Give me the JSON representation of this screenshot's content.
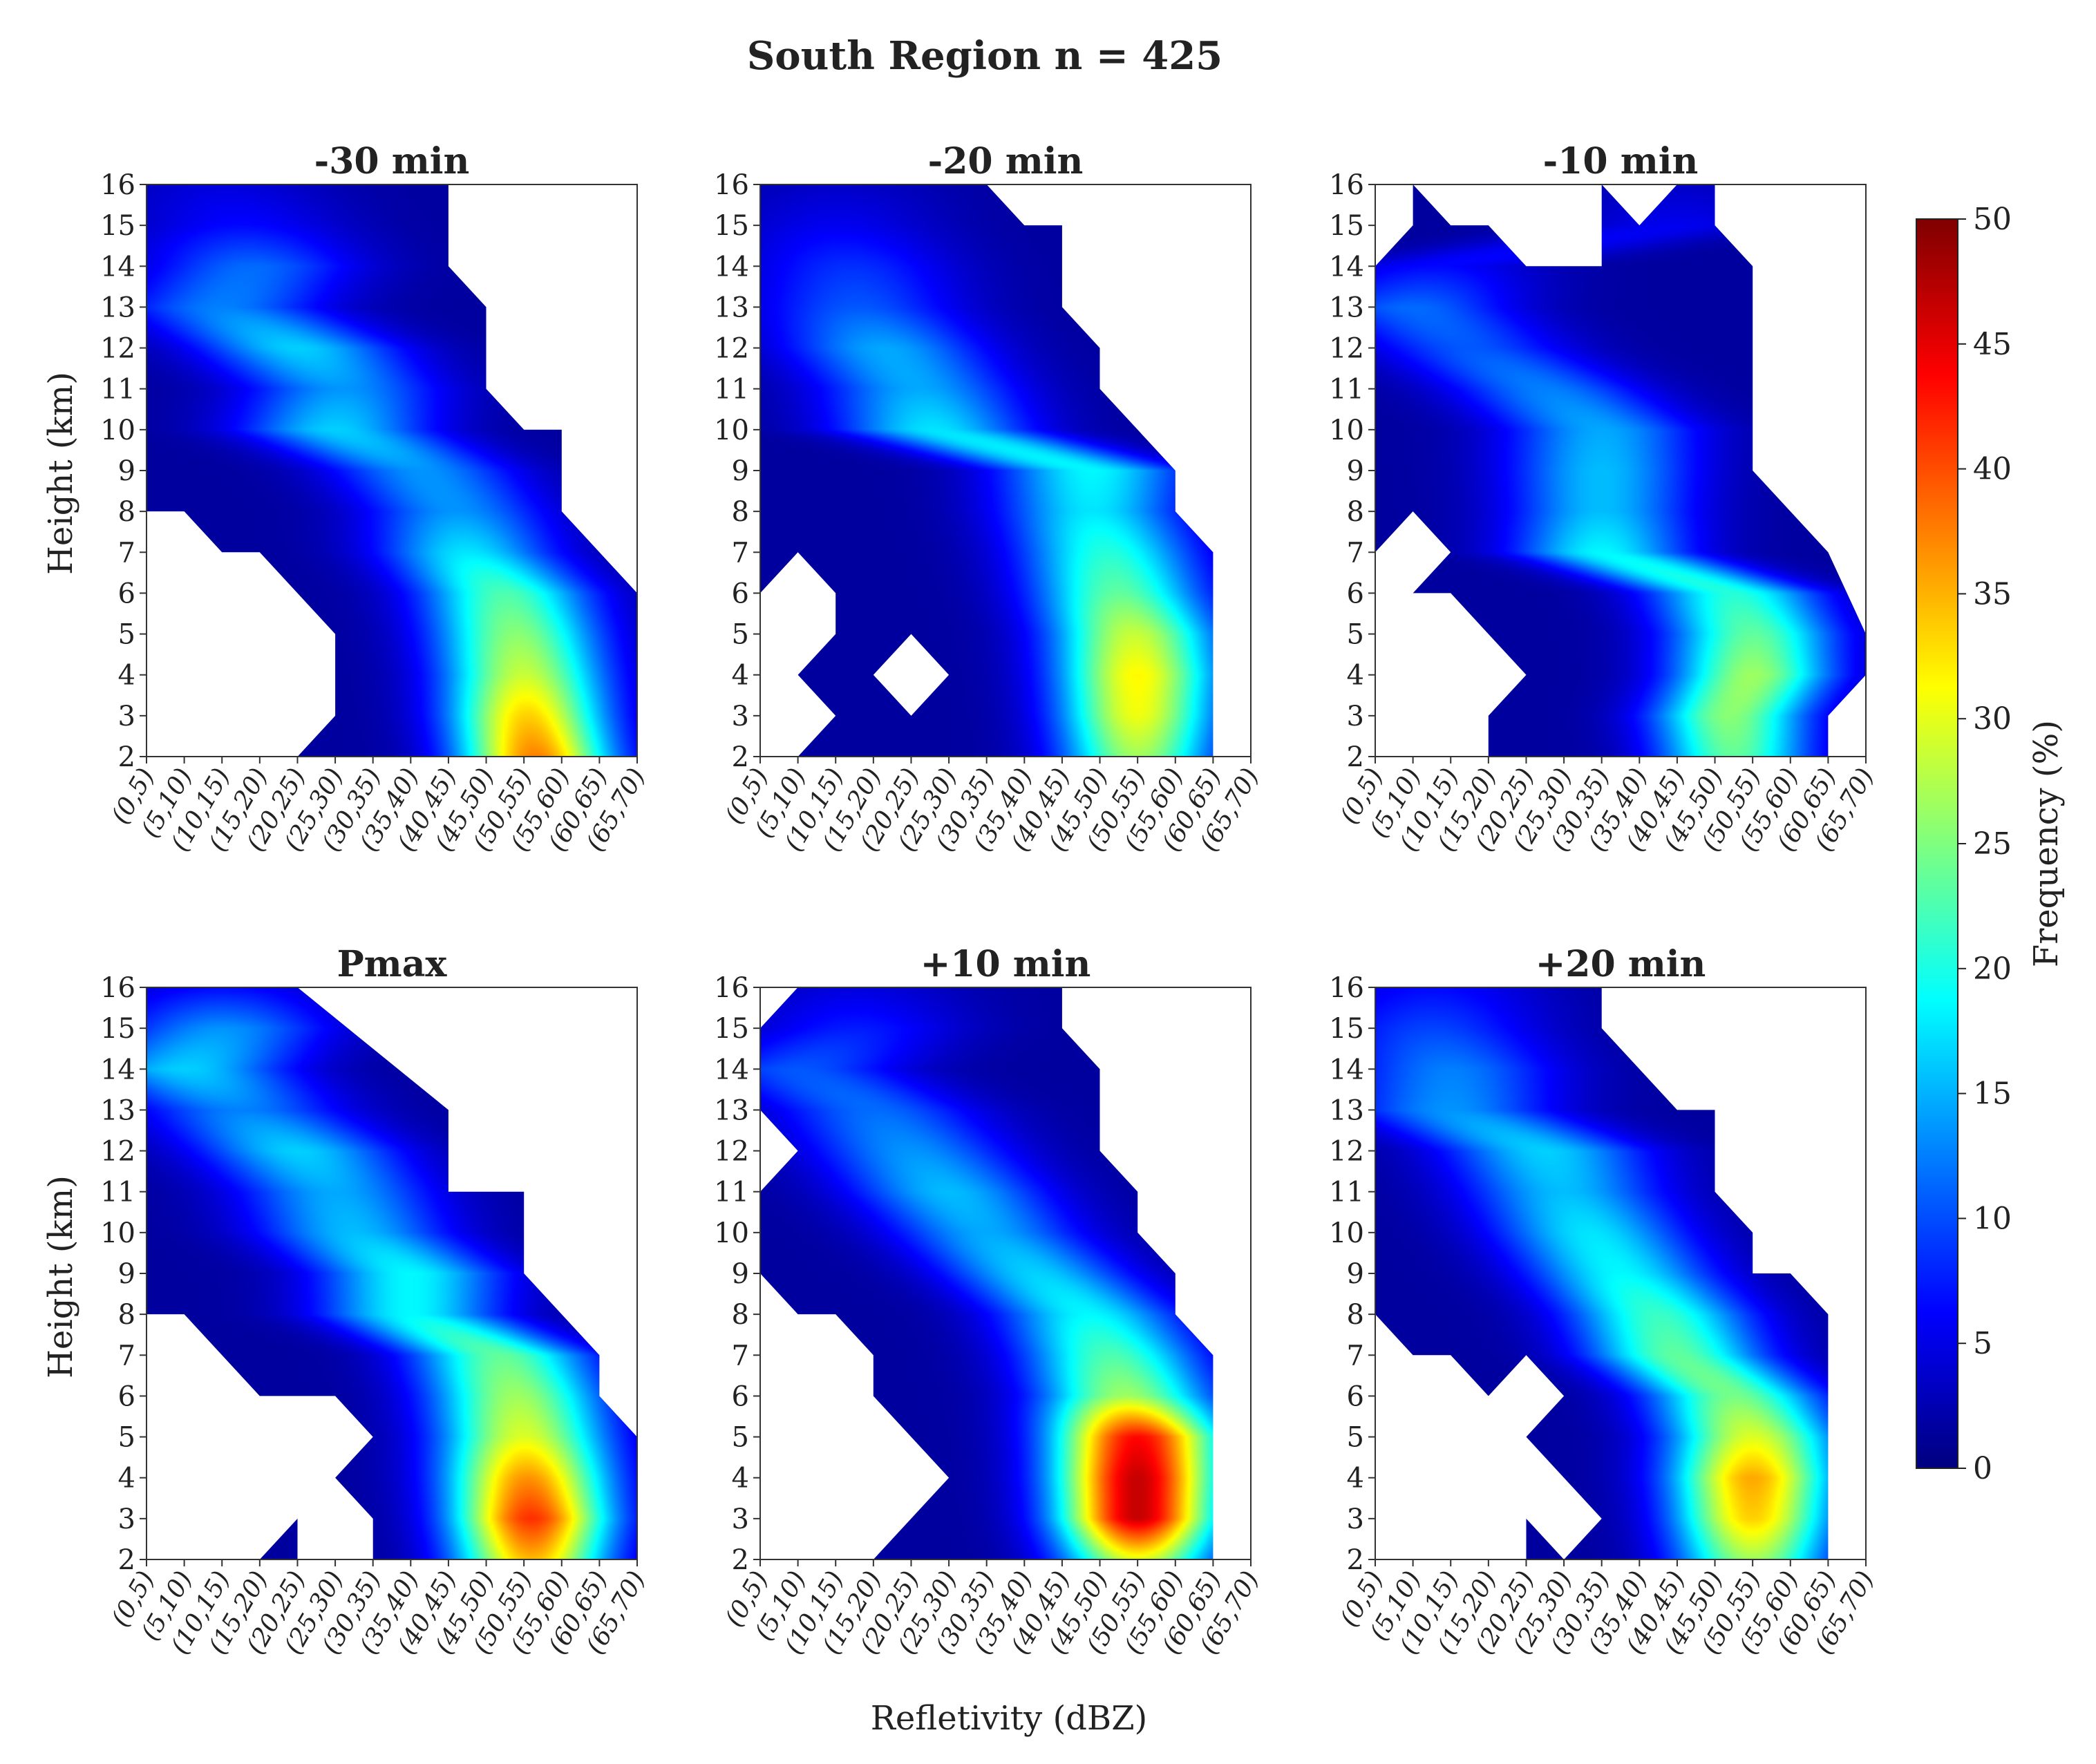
{
  "figure": {
    "suptitle": "South Region  n = 425",
    "shared_xlabel": "Refletivity (dBZ)",
    "shared_ylabel": "Height   (km)"
  },
  "colorbar": {
    "label": "Frequency (%)",
    "range": [
      0,
      50
    ],
    "ticks": [
      "0",
      "5",
      "10",
      "15",
      "20",
      "25",
      "30",
      "35",
      "40",
      "45",
      "50"
    ],
    "colormap": "jet",
    "stops": [
      "#00007f",
      "#0000ff",
      "#007fff",
      "#00ffff",
      "#7fff7f",
      "#ffff00",
      "#ff7f00",
      "#ff0000",
      "#7f0000"
    ]
  },
  "chart_data": [
    {
      "type": "heatmap",
      "title": "-30 min",
      "x_categories": [
        "(0,5)",
        "(5,10)",
        "(10,15)",
        "(15,20)",
        "(20,25)",
        "(25,30)",
        "(30,35)",
        "(35,40)",
        "(40,45)",
        "(45,50)",
        "(50,55)",
        "(55,60)",
        "(60,65)",
        "(65,70)"
      ],
      "y_ticks": [
        "2",
        "3",
        "4",
        "5",
        "6",
        "7",
        "8",
        "9",
        "10",
        "11",
        "12",
        "13",
        "14",
        "15",
        "16"
      ],
      "ylim": [
        2,
        16
      ],
      "ylabel": "Height   (km)",
      "value_range": [
        0,
        50
      ],
      "ridge": [
        [
          2,
          10.3,
          36
        ],
        [
          3,
          10.1,
          32
        ],
        [
          4,
          10.0,
          27
        ],
        [
          5,
          9.8,
          24
        ],
        [
          6,
          9.5,
          21
        ],
        [
          7,
          8.5,
          16
        ],
        [
          8,
          8.2,
          12
        ],
        [
          9,
          7.3,
          12
        ],
        [
          10,
          5.0,
          15
        ],
        [
          11,
          5.2,
          12
        ],
        [
          12,
          4.0,
          15
        ],
        [
          13,
          2.0,
          11
        ],
        [
          14,
          2.8,
          10
        ],
        [
          15,
          2.5,
          5
        ],
        [
          16,
          2.0,
          3
        ]
      ],
      "valid": [
        [
          0,
          8.0
        ],
        [
          0,
          16.0
        ],
        [
          8.0,
          16.0
        ],
        [
          8.0,
          14.0
        ],
        [
          9.0,
          13.0
        ],
        [
          9.0,
          11.0
        ],
        [
          10.0,
          10.0
        ],
        [
          11.0,
          10.0
        ],
        [
          11.0,
          8.0
        ],
        [
          13.0,
          6.0
        ],
        [
          13.0,
          2.0
        ],
        [
          4.0,
          2.0
        ],
        [
          5.0,
          3.0
        ],
        [
          5.0,
          5.0
        ],
        [
          3.0,
          7.0
        ],
        [
          2.0,
          7.0
        ],
        [
          1.0,
          8.0
        ]
      ],
      "holes": []
    },
    {
      "type": "heatmap",
      "title": "-20 min",
      "x_categories": [
        "(0,5)",
        "(5,10)",
        "(10,15)",
        "(15,20)",
        "(20,25)",
        "(25,30)",
        "(30,35)",
        "(35,40)",
        "(40,45)",
        "(45,50)",
        "(50,55)",
        "(55,60)",
        "(60,65)",
        "(65,70)"
      ],
      "y_ticks": [
        "2",
        "3",
        "4",
        "5",
        "6",
        "7",
        "8",
        "9",
        "10",
        "11",
        "12",
        "13",
        "14",
        "15",
        "16"
      ],
      "ylim": [
        2,
        16
      ],
      "ylabel": "",
      "value_range": [
        0,
        50
      ],
      "ridge": [
        [
          2,
          10.0,
          25
        ],
        [
          3,
          10.0,
          29
        ],
        [
          4,
          10.0,
          30
        ],
        [
          5,
          9.9,
          27
        ],
        [
          6,
          9.5,
          22
        ],
        [
          7,
          9.2,
          19
        ],
        [
          8,
          8.8,
          16
        ],
        [
          9,
          8.8,
          17
        ],
        [
          10,
          4.6,
          16
        ],
        [
          11,
          4.2,
          13
        ],
        [
          12,
          3.3,
          13
        ],
        [
          13,
          2.6,
          9
        ],
        [
          14,
          2.4,
          7
        ],
        [
          15,
          2.0,
          4
        ],
        [
          16,
          2.0,
          2
        ]
      ],
      "valid": [
        [
          0,
          6.0
        ],
        [
          0,
          16.0
        ],
        [
          6.0,
          16.0
        ],
        [
          7.0,
          15.0
        ],
        [
          8.0,
          15.0
        ],
        [
          8.0,
          13.0
        ],
        [
          9.0,
          12.0
        ],
        [
          9.0,
          11.0
        ],
        [
          11.0,
          9.0
        ],
        [
          11.0,
          8.0
        ],
        [
          12.0,
          7.0
        ],
        [
          12.0,
          2.0
        ],
        [
          1.0,
          2.0
        ],
        [
          2.0,
          3.0
        ],
        [
          1.0,
          4.0
        ],
        [
          2.0,
          5.0
        ],
        [
          2.0,
          6.0
        ],
        [
          1.0,
          7.0
        ]
      ],
      "holes": [
        [
          [
            3.0,
            4.0
          ],
          [
            4.0,
            5.0
          ],
          [
            5.0,
            4.0
          ],
          [
            4.0,
            3.0
          ]
        ]
      ]
    },
    {
      "type": "heatmap",
      "title": "-10 min",
      "x_categories": [
        "(0,5)",
        "(5,10)",
        "(10,15)",
        "(15,20)",
        "(20,25)",
        "(25,30)",
        "(30,35)",
        "(35,40)",
        "(40,45)",
        "(45,50)",
        "(50,55)",
        "(55,60)",
        "(60,65)",
        "(65,70)"
      ],
      "y_ticks": [
        "2",
        "3",
        "4",
        "5",
        "6",
        "7",
        "8",
        "9",
        "10",
        "11",
        "12",
        "13",
        "14",
        "15",
        "16"
      ],
      "ylim": [
        2,
        16
      ],
      "ylabel": "",
      "value_range": [
        0,
        50
      ],
      "ridge": [
        [
          2,
          9.5,
          22
        ],
        [
          3,
          9.4,
          24
        ],
        [
          4,
          10.0,
          25
        ],
        [
          5,
          10.0,
          22
        ],
        [
          6,
          9.5,
          19
        ],
        [
          7,
          6.0,
          17
        ],
        [
          8,
          6.0,
          14
        ],
        [
          9,
          6.0,
          14
        ],
        [
          10,
          6.0,
          13
        ],
        [
          11,
          4.5,
          11
        ],
        [
          12,
          2.5,
          9
        ],
        [
          13,
          1.0,
          10
        ],
        [
          14,
          1.5,
          5
        ],
        [
          15,
          8.0,
          4
        ],
        [
          16,
          8.0,
          2
        ]
      ],
      "valid": [
        [
          0,
          7.0
        ],
        [
          0,
          14.0
        ],
        [
          1.0,
          15.0
        ],
        [
          1.0,
          16.0
        ],
        [
          2.0,
          15.0
        ],
        [
          3.0,
          15.0
        ],
        [
          4.0,
          14.0
        ],
        [
          5.0,
          14.0
        ],
        [
          6.0,
          14.0
        ],
        [
          6.0,
          16.0
        ],
        [
          9.0,
          16.0
        ],
        [
          9.0,
          15.0
        ],
        [
          10.0,
          14.0
        ],
        [
          10.0,
          9.0
        ],
        [
          12.0,
          7.0
        ],
        [
          13.0,
          5.0
        ],
        [
          13.0,
          4.0
        ],
        [
          12.0,
          3.0
        ],
        [
          12.0,
          2.0
        ],
        [
          3.0,
          2.0
        ],
        [
          3.0,
          3.0
        ],
        [
          4.0,
          4.0
        ],
        [
          3.0,
          5.0
        ],
        [
          2.0,
          6.0
        ],
        [
          1.0,
          6.0
        ],
        [
          2.0,
          7.0
        ],
        [
          1.0,
          8.0
        ]
      ],
      "holes": [
        [
          [
            7.0,
            15.0
          ],
          [
            6.0,
            16.0
          ],
          [
            8.0,
            16.0
          ]
        ]
      ]
    },
    {
      "type": "heatmap",
      "title": "Pmax",
      "x_categories": [
        "(0,5)",
        "(5,10)",
        "(10,15)",
        "(15,20)",
        "(20,25)",
        "(25,30)",
        "(30,35)",
        "(35,40)",
        "(40,45)",
        "(45,50)",
        "(50,55)",
        "(55,60)",
        "(60,65)",
        "(65,70)"
      ],
      "y_ticks": [
        "2",
        "3",
        "4",
        "5",
        "6",
        "7",
        "8",
        "9",
        "10",
        "11",
        "12",
        "13",
        "14",
        "15",
        "16"
      ],
      "ylim": [
        2,
        16
      ],
      "ylabel": "Height   (km)",
      "value_range": [
        0,
        50
      ],
      "ridge": [
        [
          2,
          10.2,
          33
        ],
        [
          3,
          10.2,
          40
        ],
        [
          4,
          10.1,
          35
        ],
        [
          5,
          10.0,
          28
        ],
        [
          6,
          9.8,
          25
        ],
        [
          7,
          9.4,
          22
        ],
        [
          8,
          7.0,
          17
        ],
        [
          9,
          7.0,
          17
        ],
        [
          10,
          5.5,
          14
        ],
        [
          11,
          5.0,
          13
        ],
        [
          12,
          4.0,
          15
        ],
        [
          13,
          2.5,
          11
        ],
        [
          14,
          1.0,
          15
        ],
        [
          15,
          2.0,
          12
        ],
        [
          16,
          2.0,
          5
        ]
      ],
      "valid": [
        [
          0,
          8.0
        ],
        [
          0,
          16.0
        ],
        [
          4.0,
          16.0
        ],
        [
          8.0,
          13.0
        ],
        [
          8.0,
          11.0
        ],
        [
          10.0,
          11.0
        ],
        [
          10.0,
          9.0
        ],
        [
          12.0,
          7.0
        ],
        [
          12.0,
          6.0
        ],
        [
          13.0,
          5.0
        ],
        [
          13.0,
          2.0
        ],
        [
          6.0,
          2.0
        ],
        [
          6.0,
          3.0
        ],
        [
          5.0,
          4.0
        ],
        [
          6.0,
          5.0
        ],
        [
          5.0,
          6.0
        ],
        [
          3.0,
          6.0
        ],
        [
          1.0,
          8.0
        ]
      ],
      "holes": [],
      "islands": [
        [
          [
            3.0,
            2.0
          ],
          [
            4.0,
            3.0
          ],
          [
            4.0,
            2.0
          ]
        ]
      ]
    },
    {
      "type": "heatmap",
      "title": "+10 min",
      "x_categories": [
        "(0,5)",
        "(5,10)",
        "(10,15)",
        "(15,20)",
        "(20,25)",
        "(25,30)",
        "(30,35)",
        "(35,40)",
        "(40,45)",
        "(45,50)",
        "(50,55)",
        "(55,60)",
        "(60,65)",
        "(65,70)"
      ],
      "y_ticks": [
        "2",
        "3",
        "4",
        "5",
        "6",
        "7",
        "8",
        "9",
        "10",
        "11",
        "12",
        "13",
        "14",
        "15",
        "16"
      ],
      "ylim": [
        2,
        16
      ],
      "ylabel": "",
      "value_range": [
        0,
        50
      ],
      "ridge": [
        [
          2,
          10.0,
          28
        ],
        [
          3,
          10.0,
          45
        ],
        [
          4,
          10.0,
          45
        ],
        [
          5,
          10.0,
          42
        ],
        [
          6,
          9.7,
          25
        ],
        [
          7,
          9.3,
          21
        ],
        [
          8,
          8.7,
          17
        ],
        [
          9,
          7.3,
          15
        ],
        [
          10,
          6.0,
          13
        ],
        [
          11,
          5.0,
          14
        ],
        [
          12,
          4.0,
          12
        ],
        [
          13,
          3.0,
          10
        ],
        [
          14,
          1.0,
          9
        ],
        [
          15,
          2.5,
          6
        ],
        [
          16,
          2.5,
          3
        ]
      ],
      "valid": [
        [
          0,
          11.0
        ],
        [
          1.0,
          12.0
        ],
        [
          0,
          13.0
        ],
        [
          0,
          15.0
        ],
        [
          1.0,
          16.0
        ],
        [
          8.0,
          16.0
        ],
        [
          8.0,
          15.0
        ],
        [
          9.0,
          14.0
        ],
        [
          9.0,
          12.0
        ],
        [
          10.0,
          11.0
        ],
        [
          10.0,
          10.0
        ],
        [
          11.0,
          9.0
        ],
        [
          11.0,
          8.0
        ],
        [
          12.0,
          7.0
        ],
        [
          12.0,
          2.0
        ],
        [
          3.0,
          2.0
        ],
        [
          5.0,
          4.0
        ],
        [
          3.0,
          6.0
        ],
        [
          3.0,
          7.0
        ],
        [
          2.0,
          8.0
        ],
        [
          1.0,
          8.0
        ],
        [
          0,
          9.0
        ]
      ],
      "holes": []
    },
    {
      "type": "heatmap",
      "title": "+20 min",
      "x_categories": [
        "(0,5)",
        "(5,10)",
        "(10,15)",
        "(15,20)",
        "(20,25)",
        "(25,30)",
        "(30,35)",
        "(35,40)",
        "(40,45)",
        "(45,50)",
        "(50,55)",
        "(55,60)",
        "(60,65)",
        "(65,70)"
      ],
      "y_ticks": [
        "2",
        "3",
        "4",
        "5",
        "6",
        "7",
        "8",
        "9",
        "10",
        "11",
        "12",
        "13",
        "14",
        "15",
        "16"
      ],
      "ylim": [
        2,
        16
      ],
      "ylabel": "",
      "value_range": [
        0,
        50
      ],
      "ridge": [
        [
          2,
          10.0,
          25
        ],
        [
          3,
          10.0,
          32
        ],
        [
          4,
          10.0,
          34
        ],
        [
          5,
          10.0,
          28
        ],
        [
          6,
          9.5,
          23
        ],
        [
          7,
          8.0,
          22
        ],
        [
          8,
          7.5,
          20
        ],
        [
          9,
          6.5,
          17
        ],
        [
          10,
          5.7,
          16
        ],
        [
          11,
          5.0,
          14
        ],
        [
          12,
          4.5,
          15
        ],
        [
          13,
          2.0,
          12
        ],
        [
          14,
          2.0,
          11
        ],
        [
          15,
          1.5,
          8
        ],
        [
          16,
          1.5,
          5
        ]
      ],
      "valid": [
        [
          0,
          8.0
        ],
        [
          0,
          16.0
        ],
        [
          6.0,
          16.0
        ],
        [
          6.0,
          15.0
        ],
        [
          8.0,
          13.0
        ],
        [
          9.0,
          13.0
        ],
        [
          9.0,
          11.0
        ],
        [
          10.0,
          10.0
        ],
        [
          10.0,
          9.0
        ],
        [
          11.0,
          9.0
        ],
        [
          12.0,
          8.0
        ],
        [
          12.0,
          2.0
        ],
        [
          5.0,
          2.0
        ],
        [
          6.0,
          3.0
        ],
        [
          4.0,
          5.0
        ],
        [
          5.0,
          6.0
        ],
        [
          4.0,
          7.0
        ],
        [
          3.0,
          6.0
        ],
        [
          2.0,
          7.0
        ],
        [
          1.0,
          7.0
        ]
      ],
      "holes": [],
      "islands": [
        [
          [
            4.0,
            2.0
          ],
          [
            4.0,
            3.0
          ],
          [
            5.0,
            2.0
          ]
        ]
      ]
    }
  ]
}
